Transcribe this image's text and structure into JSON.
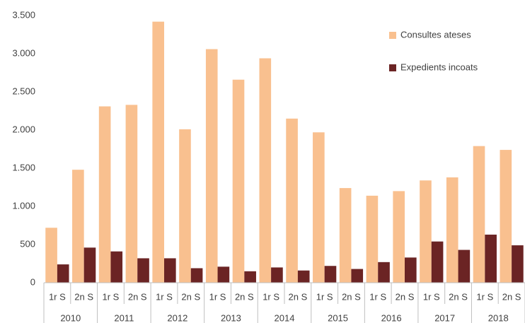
{
  "chart_data": {
    "type": "bar",
    "categories": [
      "1r S",
      "2n S",
      "1r S",
      "2n S",
      "1r S",
      "2n S",
      "1r S",
      "2n S",
      "1r S",
      "2n S",
      "1r S",
      "2n S",
      "1r S",
      "2n S",
      "1r S",
      "2n S",
      "1r S",
      "2n S"
    ],
    "groups": [
      "2010",
      "2011",
      "2012",
      "2013",
      "2014",
      "2015",
      "2016",
      "2017",
      "2018"
    ],
    "series": [
      {
        "name": "Consultes ateses",
        "color": "#f9c08f",
        "values": [
          720,
          1480,
          2310,
          2330,
          3420,
          2010,
          3060,
          2660,
          2940,
          2150,
          1970,
          1240,
          1140,
          1200,
          1340,
          1380,
          1790,
          1740
        ]
      },
      {
        "name": "Expedients incoats",
        "color": "#6b2424",
        "values": [
          240,
          460,
          410,
          320,
          320,
          190,
          210,
          150,
          200,
          160,
          220,
          180,
          270,
          330,
          540,
          430,
          630,
          490
        ]
      }
    ],
    "ylim": [
      0,
      3500
    ],
    "yticks": [
      0,
      {
        "value": 500,
        "label": "500"
      },
      {
        "value": 1000,
        "label": "1.000"
      },
      {
        "value": 1500,
        "label": "1.500"
      },
      {
        "value": 2000,
        "label": "2.000"
      },
      {
        "value": 2500,
        "label": "2.500"
      },
      {
        "value": 3000,
        "label": "3.000"
      },
      {
        "value": 3500,
        "label": "3.500"
      }
    ],
    "grid": false,
    "legend": "top-right"
  }
}
